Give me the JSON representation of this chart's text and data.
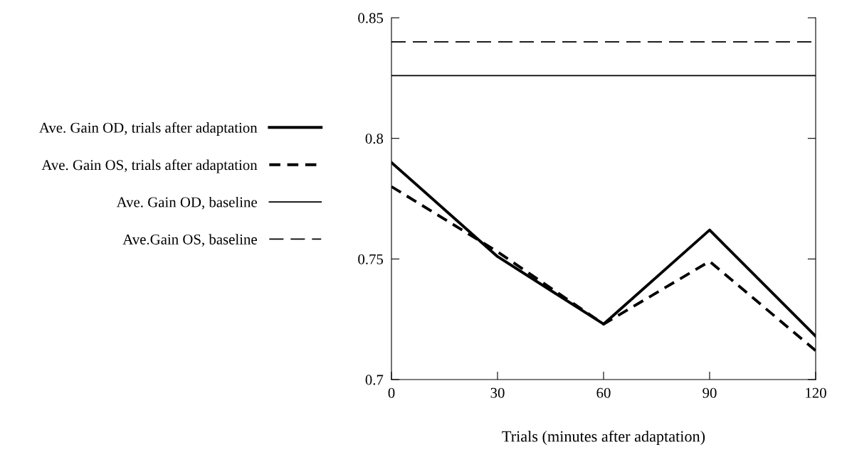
{
  "chart_data": {
    "type": "line",
    "xlabel": "Trials (minutes after adaptation)",
    "x": [
      0,
      30,
      60,
      90,
      120
    ],
    "series": [
      {
        "name": "Ave. Gain OD, trials after adaptation",
        "color": "#000000",
        "line_style": "solid",
        "values": [
          0.79,
          0.751,
          0.723,
          0.762,
          0.718
        ]
      },
      {
        "name": "Ave. Gain OS, trials after adaptation",
        "color": "#000000",
        "line_style": "dashed",
        "values": [
          0.78,
          0.753,
          0.723,
          0.749,
          0.712
        ]
      },
      {
        "name": "Ave. Gain OD, baseline",
        "color": "#000000",
        "line_style": "solid",
        "values": [
          0.826,
          0.826,
          0.826,
          0.826,
          0.826
        ]
      },
      {
        "name": "Ave.Gain OS, baseline",
        "color": "#000000",
        "line_style": "dashed",
        "values": [
          0.84,
          0.84,
          0.84,
          0.84,
          0.84
        ]
      }
    ],
    "xlim": [
      0,
      120
    ],
    "xticks": [
      0,
      30,
      60,
      90,
      120
    ],
    "ylim": [
      0.7,
      0.85
    ],
    "yticks": [
      {
        "value": 0.7,
        "label": "0.7"
      },
      {
        "value": 0.75,
        "label": "0.75"
      },
      {
        "value": 0.8,
        "label": "0.8"
      },
      {
        "value": 0.85,
        "label": "0.85"
      }
    ],
    "grid": false,
    "legend": "left",
    "marker": "none"
  }
}
